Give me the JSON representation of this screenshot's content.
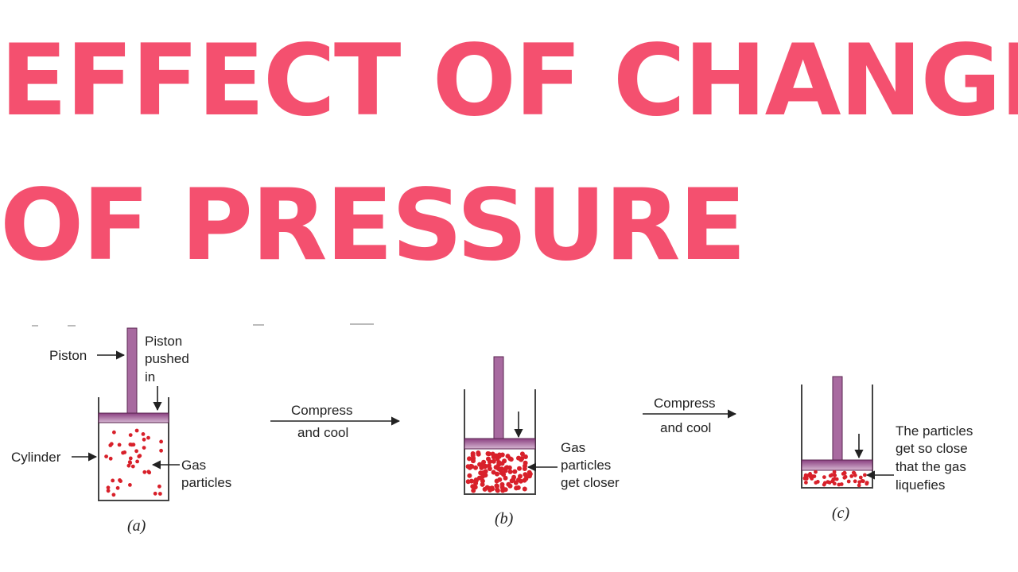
{
  "title": {
    "line1": "EFFECT OF CHANGE",
    "line2": "OF PRESSURE"
  },
  "colors": {
    "title": "#f4506f",
    "piston": "#a86aa0",
    "piston_edge": "#5a2550",
    "plate_top": "#8a3f80",
    "plate_bottom": "#d6b7d2",
    "particle": "#d8202a",
    "cylinder": "#444444"
  },
  "panels": {
    "a": {
      "caption": "(a)",
      "piston_label": "Piston",
      "pushed_label": [
        "Piston",
        "pushed",
        "in"
      ],
      "cylinder_label": "Cylinder",
      "gas_label": [
        "Gas",
        "particles"
      ]
    },
    "b": {
      "caption": "(b)",
      "gas_label": [
        "Gas",
        "particles",
        "get closer"
      ]
    },
    "c": {
      "caption": "(c)",
      "note_label": [
        "The particles",
        "get so close",
        "that the gas",
        "liquefies"
      ]
    }
  },
  "transitions": [
    {
      "line1": "Compress",
      "line2": "and cool"
    },
    {
      "line1": "Compress",
      "line2": "and cool"
    }
  ]
}
